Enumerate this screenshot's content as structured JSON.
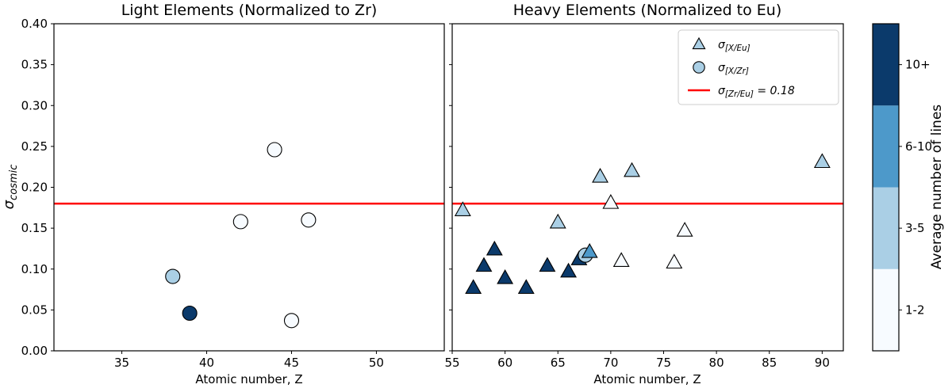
{
  "figure": {
    "background": "#ffffff"
  },
  "chart_data": {
    "type": "scatter",
    "ylabel_parts": {
      "base": "σ",
      "sub": "cosmic"
    },
    "ylim": [
      0,
      0.4
    ],
    "yticks": [
      0.0,
      0.05,
      0.1,
      0.15,
      0.2,
      0.25,
      0.3,
      0.35,
      0.4
    ],
    "reference_line": {
      "y": 0.18,
      "color": "#ff0000",
      "label_base": "σ",
      "label_sub": "[Zr/Eu]",
      "label_rest": " = 0.18"
    },
    "panels": [
      {
        "title": "Light Elements (Normalized to Zr)",
        "xlabel": "Atomic number, Z",
        "xlim": [
          31,
          54
        ],
        "xticks": [
          35,
          40,
          45,
          50
        ],
        "show_y_tick_labels": true,
        "points": [
          {
            "x": 38,
            "y": 0.091,
            "lines": "3-5",
            "marker": "circle"
          },
          {
            "x": 39,
            "y": 0.046,
            "lines": "10+",
            "marker": "circle"
          },
          {
            "x": 42,
            "y": 0.158,
            "lines": "1-2",
            "marker": "circle"
          },
          {
            "x": 44,
            "y": 0.246,
            "lines": "1-2",
            "marker": "circle"
          },
          {
            "x": 45,
            "y": 0.037,
            "lines": "1-2",
            "marker": "circle"
          },
          {
            "x": 46,
            "y": 0.16,
            "lines": "1-2",
            "marker": "circle"
          }
        ]
      },
      {
        "title": "Heavy Elements (Normalized to Eu)",
        "xlabel": "Atomic number, Z",
        "xlim": [
          55,
          92
        ],
        "xticks": [
          55,
          60,
          65,
          70,
          75,
          80,
          85,
          90
        ],
        "show_y_tick_labels": false,
        "points": [
          {
            "x": 56,
            "y": 0.172,
            "lines": "3-5",
            "marker": "triangle"
          },
          {
            "x": 57,
            "y": 0.077,
            "lines": "10+",
            "marker": "triangle"
          },
          {
            "x": 58,
            "y": 0.104,
            "lines": "10+",
            "marker": "triangle"
          },
          {
            "x": 59,
            "y": 0.124,
            "lines": "10+",
            "marker": "triangle"
          },
          {
            "x": 60,
            "y": 0.089,
            "lines": "10+",
            "marker": "triangle"
          },
          {
            "x": 62,
            "y": 0.077,
            "lines": "10+",
            "marker": "triangle"
          },
          {
            "x": 64,
            "y": 0.104,
            "lines": "10+",
            "marker": "triangle"
          },
          {
            "x": 65,
            "y": 0.157,
            "lines": "3-5",
            "marker": "triangle"
          },
          {
            "x": 66,
            "y": 0.097,
            "lines": "10+",
            "marker": "triangle"
          },
          {
            "x": 67,
            "y": 0.112,
            "lines": "10+",
            "marker": "triangle"
          },
          {
            "x": 67.6,
            "y": 0.117,
            "lines": "3-5",
            "marker": "circle"
          },
          {
            "x": 68,
            "y": 0.121,
            "lines": "6-10",
            "marker": "triangle"
          },
          {
            "x": 69,
            "y": 0.213,
            "lines": "3-5",
            "marker": "triangle"
          },
          {
            "x": 70,
            "y": 0.181,
            "lines": "1-2",
            "marker": "triangle"
          },
          {
            "x": 71,
            "y": 0.11,
            "lines": "1-2",
            "marker": "triangle"
          },
          {
            "x": 72,
            "y": 0.22,
            "lines": "3-5",
            "marker": "triangle"
          },
          {
            "x": 76,
            "y": 0.108,
            "lines": "1-2",
            "marker": "triangle"
          },
          {
            "x": 77,
            "y": 0.147,
            "lines": "1-2",
            "marker": "triangle"
          },
          {
            "x": 90,
            "y": 0.231,
            "lines": "3-5",
            "marker": "triangle"
          }
        ]
      }
    ],
    "legend": [
      {
        "marker": "triangle",
        "label_base": "σ",
        "label_sub": "[X/Eu]",
        "label_rest": ""
      },
      {
        "marker": "circle",
        "label_base": "σ",
        "label_sub": "[X/Zr]",
        "label_rest": ""
      },
      {
        "marker": "line",
        "label_base": "σ",
        "label_sub": "[Zr/Eu]",
        "label_rest": " = 0.18"
      }
    ],
    "legend_marker_color": "#aacfe5",
    "colorbar": {
      "label": "Average number of lines",
      "bins": [
        {
          "label": "1-2",
          "color": "#f7fbff"
        },
        {
          "label": "3-5",
          "color": "#aacfe5"
        },
        {
          "label": "6-10",
          "color": "#4d99ca"
        },
        {
          "label": "10+",
          "color": "#0b3a6b"
        }
      ]
    },
    "marker_edge_color": "#000000"
  }
}
